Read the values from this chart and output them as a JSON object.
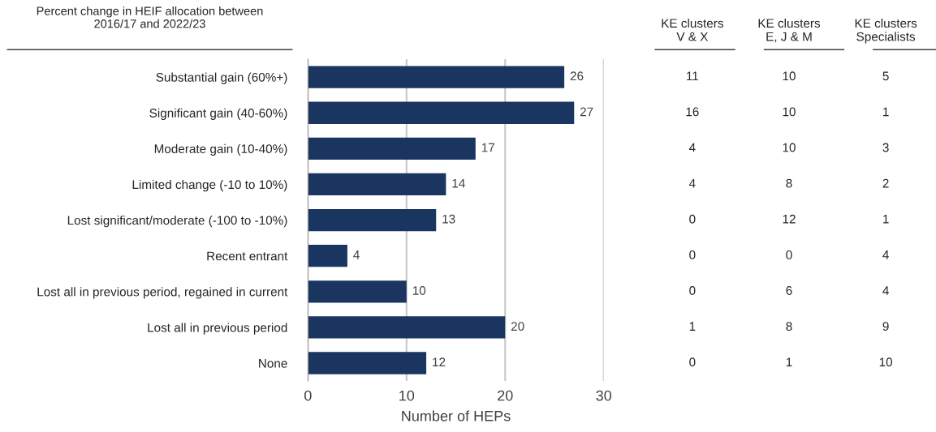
{
  "chart_data": [
    {
      "type": "bar",
      "orientation": "horizontal",
      "title": "Percent change in HEIF allocation between\n2016/17 and 2022/23",
      "xlabel": "Number of HEPs",
      "categories": [
        "Substantial gain (60%+)",
        "Significant gain (40-60%)",
        "Moderate gain (10-40%)",
        "Limited change (-10 to 10%)",
        "Lost significant/moderate (-100 to -10%)",
        "Recent entrant",
        "Lost all in previous period, regained in current",
        "Lost all in previous period",
        "None"
      ],
      "values": [
        26,
        27,
        17,
        14,
        13,
        4,
        10,
        20,
        12
      ],
      "color": "#1a3660",
      "xlim": [
        0,
        30
      ],
      "xticks": [
        0,
        10,
        20,
        30
      ],
      "grid": "x",
      "data_labels": true
    },
    {
      "type": "heatmap",
      "categories": [
        "KE clusters\nV & X",
        "KE clusters\nE, J & M",
        "KE clusters\nSpecialists"
      ],
      "y_categories": [
        null,
        null,
        null,
        null,
        null,
        null,
        null,
        null,
        null
      ],
      "cells": [
        [
          11,
          10,
          5
        ],
        [
          16,
          10,
          1
        ],
        [
          4,
          10,
          3
        ],
        [
          4,
          8,
          2
        ],
        [
          0,
          12,
          1
        ],
        [
          0,
          0,
          4
        ],
        [
          0,
          6,
          4
        ],
        [
          1,
          8,
          9
        ],
        [
          0,
          1,
          10
        ]
      ],
      "data_labels": true,
      "tick_labels": "x"
    }
  ]
}
